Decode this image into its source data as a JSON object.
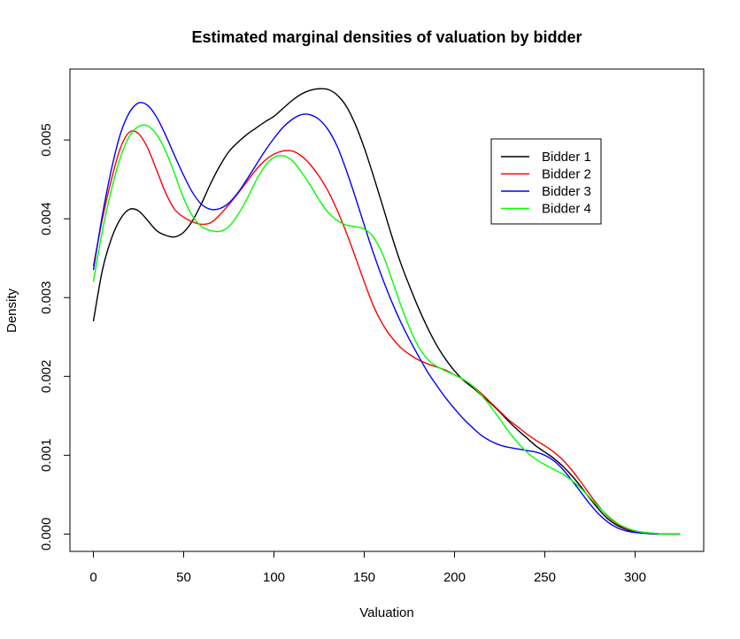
{
  "chart_data": {
    "type": "line",
    "title": "Estimated marginal densities of valuation by bidder",
    "xlabel": "Valuation",
    "ylabel": "Density",
    "xlim": [
      -13,
      338
    ],
    "ylim": [
      -0.00022,
      0.0059
    ],
    "xticks": [
      0,
      50,
      100,
      150,
      200,
      250,
      300
    ],
    "xtick_labels": [
      "0",
      "50",
      "100",
      "150",
      "200",
      "250",
      "300"
    ],
    "yticks": [
      0.0,
      0.001,
      0.002,
      0.003,
      0.004,
      0.005
    ],
    "ytick_labels": [
      "0.000",
      "0.001",
      "0.002",
      "0.003",
      "0.004",
      "0.005"
    ],
    "grid": false,
    "legend_position": "top-right",
    "series": [
      {
        "name": "Bidder 1",
        "color": "#000000",
        "points": [
          [
            0,
            0.0027
          ],
          [
            5,
            0.00335
          ],
          [
            10,
            0.00375
          ],
          [
            15,
            0.004
          ],
          [
            20,
            0.00412
          ],
          [
            25,
            0.0041
          ],
          [
            30,
            0.00398
          ],
          [
            35,
            0.00385
          ],
          [
            40,
            0.00379
          ],
          [
            45,
            0.00377
          ],
          [
            50,
            0.00383
          ],
          [
            55,
            0.00398
          ],
          [
            60,
            0.0042
          ],
          [
            65,
            0.00445
          ],
          [
            70,
            0.00467
          ],
          [
            75,
            0.00485
          ],
          [
            80,
            0.00497
          ],
          [
            85,
            0.00507
          ],
          [
            90,
            0.00515
          ],
          [
            95,
            0.00523
          ],
          [
            100,
            0.0053
          ],
          [
            105,
            0.0054
          ],
          [
            110,
            0.0055
          ],
          [
            115,
            0.00558
          ],
          [
            120,
            0.00563
          ],
          [
            125,
            0.00565
          ],
          [
            130,
            0.00564
          ],
          [
            135,
            0.00557
          ],
          [
            140,
            0.00543
          ],
          [
            145,
            0.0052
          ],
          [
            150,
            0.0049
          ],
          [
            155,
            0.00455
          ],
          [
            160,
            0.00418
          ],
          [
            165,
            0.0038
          ],
          [
            170,
            0.00345
          ],
          [
            175,
            0.00315
          ],
          [
            180,
            0.00287
          ],
          [
            185,
            0.00262
          ],
          [
            190,
            0.0024
          ],
          [
            195,
            0.00222
          ],
          [
            200,
            0.00207
          ],
          [
            205,
            0.00195
          ],
          [
            210,
            0.00186
          ],
          [
            215,
            0.00176
          ],
          [
            220,
            0.00166
          ],
          [
            225,
            0.00155
          ],
          [
            230,
            0.00143
          ],
          [
            235,
            0.00132
          ],
          [
            240,
            0.00122
          ],
          [
            245,
            0.00112
          ],
          [
            250,
            0.00104
          ],
          [
            255,
            0.00096
          ],
          [
            260,
            0.00086
          ],
          [
            265,
            0.00074
          ],
          [
            270,
            0.0006
          ],
          [
            275,
            0.00045
          ],
          [
            280,
            0.00031
          ],
          [
            285,
            0.00019
          ],
          [
            290,
            0.00011
          ],
          [
            295,
            6e-05
          ],
          [
            300,
            3e-05
          ],
          [
            305,
            2e-05
          ],
          [
            310,
            1e-05
          ],
          [
            315,
            0.0
          ],
          [
            320,
            0.0
          ],
          [
            325,
            0.0
          ]
        ]
      },
      {
        "name": "Bidder 2",
        "color": "#ff0000",
        "points": [
          [
            0,
            0.0034
          ],
          [
            5,
            0.004
          ],
          [
            10,
            0.0045
          ],
          [
            15,
            0.0049
          ],
          [
            20,
            0.0051
          ],
          [
            25,
            0.00508
          ],
          [
            30,
            0.0049
          ],
          [
            35,
            0.00462
          ],
          [
            40,
            0.00433
          ],
          [
            45,
            0.00412
          ],
          [
            50,
            0.00402
          ],
          [
            55,
            0.00396
          ],
          [
            60,
            0.00393
          ],
          [
            65,
            0.00395
          ],
          [
            70,
            0.00405
          ],
          [
            75,
            0.00418
          ],
          [
            80,
            0.00432
          ],
          [
            85,
            0.00447
          ],
          [
            90,
            0.00462
          ],
          [
            95,
            0.00474
          ],
          [
            100,
            0.00482
          ],
          [
            105,
            0.00486
          ],
          [
            110,
            0.00486
          ],
          [
            115,
            0.0048
          ],
          [
            120,
            0.00469
          ],
          [
            125,
            0.00454
          ],
          [
            130,
            0.00435
          ],
          [
            135,
            0.00411
          ],
          [
            140,
            0.00383
          ],
          [
            145,
            0.00352
          ],
          [
            150,
            0.0032
          ],
          [
            155,
            0.0029
          ],
          [
            160,
            0.00267
          ],
          [
            165,
            0.0025
          ],
          [
            170,
            0.00237
          ],
          [
            175,
            0.00228
          ],
          [
            180,
            0.00221
          ],
          [
            185,
            0.00216
          ],
          [
            190,
            0.00212
          ],
          [
            195,
            0.00208
          ],
          [
            200,
            0.00202
          ],
          [
            205,
            0.00196
          ],
          [
            210,
            0.00188
          ],
          [
            215,
            0.00178
          ],
          [
            220,
            0.00167
          ],
          [
            225,
            0.00156
          ],
          [
            230,
            0.00145
          ],
          [
            235,
            0.00136
          ],
          [
            240,
            0.00127
          ],
          [
            245,
            0.00119
          ],
          [
            250,
            0.00112
          ],
          [
            255,
            0.00104
          ],
          [
            260,
            0.00094
          ],
          [
            265,
            0.00081
          ],
          [
            270,
            0.00066
          ],
          [
            275,
            0.0005
          ],
          [
            280,
            0.00035
          ],
          [
            285,
            0.00022
          ],
          [
            290,
            0.00013
          ],
          [
            295,
            7e-05
          ],
          [
            300,
            4e-05
          ],
          [
            305,
            2e-05
          ],
          [
            310,
            1e-05
          ],
          [
            315,
            0.0
          ],
          [
            320,
            0.0
          ],
          [
            325,
            0.0
          ]
        ]
      },
      {
        "name": "Bidder 3",
        "color": "#0000ff",
        "points": [
          [
            0,
            0.00335
          ],
          [
            5,
            0.00405
          ],
          [
            10,
            0.00463
          ],
          [
            15,
            0.00508
          ],
          [
            20,
            0.00535
          ],
          [
            25,
            0.00547
          ],
          [
            30,
            0.00544
          ],
          [
            35,
            0.00529
          ],
          [
            40,
            0.00506
          ],
          [
            45,
            0.0048
          ],
          [
            50,
            0.00455
          ],
          [
            55,
            0.00433
          ],
          [
            60,
            0.00418
          ],
          [
            65,
            0.00412
          ],
          [
            70,
            0.00413
          ],
          [
            75,
            0.0042
          ],
          [
            80,
            0.00433
          ],
          [
            85,
            0.0045
          ],
          [
            90,
            0.00468
          ],
          [
            95,
            0.00486
          ],
          [
            100,
            0.00502
          ],
          [
            105,
            0.00516
          ],
          [
            110,
            0.00526
          ],
          [
            115,
            0.00532
          ],
          [
            120,
            0.00532
          ],
          [
            125,
            0.00526
          ],
          [
            130,
            0.00513
          ],
          [
            135,
            0.00492
          ],
          [
            140,
            0.00462
          ],
          [
            145,
            0.00428
          ],
          [
            150,
            0.00392
          ],
          [
            155,
            0.00357
          ],
          [
            160,
            0.00325
          ],
          [
            165,
            0.00296
          ],
          [
            170,
            0.0027
          ],
          [
            175,
            0.00247
          ],
          [
            180,
            0.00226
          ],
          [
            185,
            0.00206
          ],
          [
            190,
            0.00189
          ],
          [
            195,
            0.00173
          ],
          [
            200,
            0.00159
          ],
          [
            205,
            0.00146
          ],
          [
            210,
            0.00135
          ],
          [
            215,
            0.00125
          ],
          [
            220,
            0.00118
          ],
          [
            225,
            0.00113
          ],
          [
            230,
            0.0011
          ],
          [
            235,
            0.00108
          ],
          [
            240,
            0.00106
          ],
          [
            245,
            0.00104
          ],
          [
            250,
            0.001
          ],
          [
            255,
            0.00093
          ],
          [
            260,
            0.00082
          ],
          [
            265,
            0.00068
          ],
          [
            270,
            0.00053
          ],
          [
            275,
            0.00038
          ],
          [
            280,
            0.00025
          ],
          [
            285,
            0.00015
          ],
          [
            290,
            8e-05
          ],
          [
            295,
            4e-05
          ],
          [
            300,
            2e-05
          ],
          [
            305,
            1e-05
          ],
          [
            310,
            0.0
          ],
          [
            315,
            0.0
          ],
          [
            320,
            0.0
          ],
          [
            325,
            0.0
          ]
        ]
      },
      {
        "name": "Bidder 4",
        "color": "#00ff00",
        "points": [
          [
            0,
            0.0032
          ],
          [
            5,
            0.00385
          ],
          [
            10,
            0.00437
          ],
          [
            15,
            0.00478
          ],
          [
            20,
            0.00505
          ],
          [
            25,
            0.00517
          ],
          [
            30,
            0.00518
          ],
          [
            35,
            0.00507
          ],
          [
            40,
            0.00486
          ],
          [
            45,
            0.00457
          ],
          [
            50,
            0.00426
          ],
          [
            55,
            0.00403
          ],
          [
            60,
            0.0039
          ],
          [
            65,
            0.00385
          ],
          [
            70,
            0.00384
          ],
          [
            75,
            0.0039
          ],
          [
            80,
            0.00405
          ],
          [
            85,
            0.00425
          ],
          [
            90,
            0.00448
          ],
          [
            95,
            0.00467
          ],
          [
            100,
            0.00478
          ],
          [
            105,
            0.0048
          ],
          [
            110,
            0.00474
          ],
          [
            115,
            0.0046
          ],
          [
            120,
            0.00443
          ],
          [
            125,
            0.00424
          ],
          [
            130,
            0.00408
          ],
          [
            135,
            0.00398
          ],
          [
            140,
            0.00392
          ],
          [
            145,
            0.0039
          ],
          [
            150,
            0.00387
          ],
          [
            155,
            0.00377
          ],
          [
            160,
            0.00356
          ],
          [
            165,
            0.00325
          ],
          [
            170,
            0.00292
          ],
          [
            175,
            0.00262
          ],
          [
            180,
            0.00238
          ],
          [
            185,
            0.00222
          ],
          [
            190,
            0.00213
          ],
          [
            195,
            0.00207
          ],
          [
            200,
            0.00202
          ],
          [
            205,
            0.00196
          ],
          [
            210,
            0.00188
          ],
          [
            215,
            0.00176
          ],
          [
            220,
            0.00162
          ],
          [
            225,
            0.00146
          ],
          [
            230,
            0.0013
          ],
          [
            235,
            0.00116
          ],
          [
            240,
            0.00104
          ],
          [
            245,
            0.00095
          ],
          [
            250,
            0.00088
          ],
          [
            255,
            0.00082
          ],
          [
            260,
            0.00076
          ],
          [
            265,
            0.00068
          ],
          [
            270,
            0.00058
          ],
          [
            275,
            0.00046
          ],
          [
            280,
            0.00034
          ],
          [
            285,
            0.00023
          ],
          [
            290,
            0.00014
          ],
          [
            295,
            8e-05
          ],
          [
            300,
            4e-05
          ],
          [
            305,
            2e-05
          ],
          [
            310,
            1e-05
          ],
          [
            315,
            0.0
          ],
          [
            320,
            0.0
          ],
          [
            325,
            0.0
          ]
        ]
      }
    ]
  }
}
